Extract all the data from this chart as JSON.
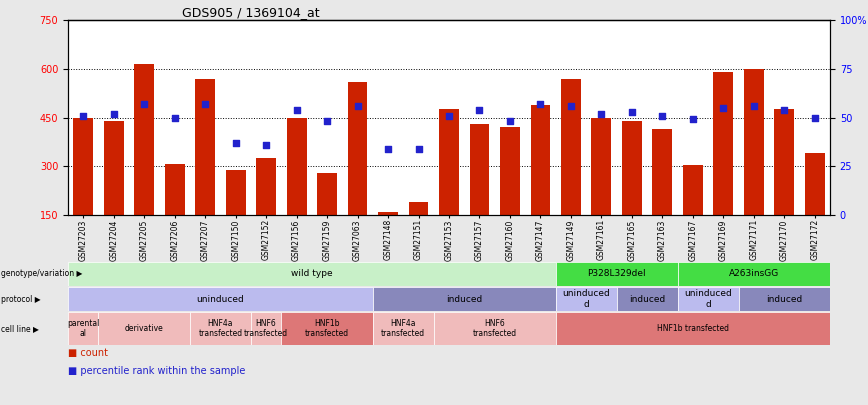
{
  "title": "GDS905 / 1369104_at",
  "samples": [
    "GSM27203",
    "GSM27204",
    "GSM27205",
    "GSM27206",
    "GSM27207",
    "GSM27150",
    "GSM27152",
    "GSM27156",
    "GSM27159",
    "GSM27063",
    "GSM27148",
    "GSM27151",
    "GSM27153",
    "GSM27157",
    "GSM27160",
    "GSM27147",
    "GSM27149",
    "GSM27161",
    "GSM27165",
    "GSM27163",
    "GSM27167",
    "GSM27169",
    "GSM27171",
    "GSM27170",
    "GSM27172"
  ],
  "counts": [
    450,
    440,
    615,
    308,
    570,
    290,
    325,
    450,
    280,
    560,
    160,
    190,
    475,
    430,
    420,
    490,
    570,
    450,
    440,
    415,
    305,
    590,
    600,
    475,
    340
  ],
  "percentiles": [
    51,
    52,
    57,
    50,
    57,
    37,
    36,
    54,
    48,
    56,
    34,
    34,
    51,
    54,
    48,
    57,
    56,
    52,
    53,
    51,
    49,
    55,
    56,
    54,
    50
  ],
  "ylim_left": [
    150,
    750
  ],
  "ylim_right": [
    0,
    100
  ],
  "yticks_left": [
    150,
    300,
    450,
    600,
    750
  ],
  "yticks_right": [
    0,
    25,
    50,
    75,
    100
  ],
  "bar_color": "#CC2200",
  "dot_color": "#2222CC",
  "bg_color": "#E8E8E8",
  "plot_bg": "#FFFFFF",
  "genotype_sections": [
    {
      "label": "wild type",
      "start": 0,
      "end": 16,
      "color": "#C8F0C8"
    },
    {
      "label": "P328L329del",
      "start": 16,
      "end": 20,
      "color": "#44DD44"
    },
    {
      "label": "A263insGG",
      "start": 20,
      "end": 25,
      "color": "#44DD44"
    }
  ],
  "protocol_sections": [
    {
      "label": "uninduced",
      "start": 0,
      "end": 10,
      "color": "#BBBBEE"
    },
    {
      "label": "induced",
      "start": 10,
      "end": 16,
      "color": "#8888BB"
    },
    {
      "label": "uninduced\nd",
      "start": 16,
      "end": 18,
      "color": "#BBBBEE"
    },
    {
      "label": "induced",
      "start": 18,
      "end": 20,
      "color": "#8888BB"
    },
    {
      "label": "uninduced\nd",
      "start": 20,
      "end": 22,
      "color": "#BBBBEE"
    },
    {
      "label": "induced",
      "start": 22,
      "end": 25,
      "color": "#8888BB"
    }
  ],
  "cellline_sections": [
    {
      "label": "parental\nal",
      "start": 0,
      "end": 1,
      "color": "#F0BBBB"
    },
    {
      "label": "derivative",
      "start": 1,
      "end": 4,
      "color": "#F0BBBB"
    },
    {
      "label": "HNF4a\ntransfected",
      "start": 4,
      "end": 6,
      "color": "#F0BBBB"
    },
    {
      "label": "HNF6\ntransfected",
      "start": 6,
      "end": 7,
      "color": "#F0BBBB"
    },
    {
      "label": "HNF1b\ntransfected",
      "start": 7,
      "end": 10,
      "color": "#DD7777"
    },
    {
      "label": "HNF4a\ntransfected",
      "start": 10,
      "end": 12,
      "color": "#F0BBBB"
    },
    {
      "label": "HNF6\ntransfected",
      "start": 12,
      "end": 16,
      "color": "#F0BBBB"
    },
    {
      "label": "HNF1b transfected",
      "start": 16,
      "end": 25,
      "color": "#DD7777"
    }
  ]
}
